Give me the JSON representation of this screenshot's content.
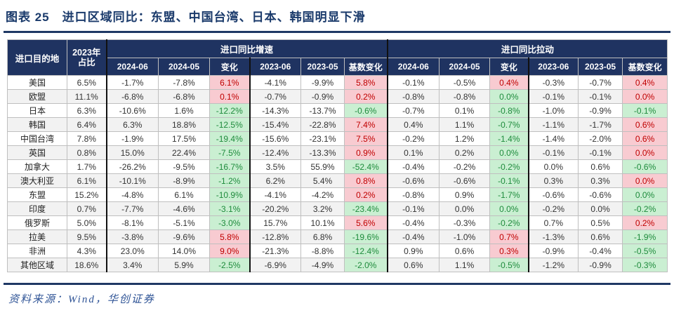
{
  "title": "图表 25　进口区域同比：东盟、中国台湾、日本、韩国明显下滑",
  "source": "资料来源：Wind，华创证券",
  "colors": {
    "title": "#1A3A6B",
    "header_bg": "#1F3361",
    "rule": "#1F3864",
    "row_alt_bg": "#F2F2F2",
    "pink_bg": "#F8CBD1",
    "pink_text": "#C00000",
    "green_bg": "#CAEFD2",
    "green_text": "#1E8B3C",
    "grid_border": "#BFBFBF",
    "thick_border": "#111111"
  },
  "chart_data": {
    "type": "table",
    "row_header": "进口目的地",
    "share_header_line1": "2023年",
    "share_header_line2": "占比",
    "groups": [
      "进口同比增速",
      "进口同比拉动"
    ],
    "sub_headers": [
      "2024-06",
      "2024-05",
      "变化",
      "2023-06",
      "2023-05",
      "基数变化"
    ],
    "rows": [
      {
        "name": "美国",
        "share": "6.5%",
        "cells": [
          "-1.7%",
          "-7.8%",
          "6.1%",
          "-4.1%",
          "-9.9%",
          "5.8%",
          "-0.1%",
          "-0.5%",
          "0.4%",
          "-0.3%",
          "-0.7%",
          "0.4%"
        ],
        "tones": [
          "p",
          "p",
          "p",
          "p"
        ]
      },
      {
        "name": "欧盟",
        "share": "11.1%",
        "cells": [
          "-6.8%",
          "-6.8%",
          "0.1%",
          "-0.7%",
          "-0.9%",
          "0.2%",
          "-0.8%",
          "-0.8%",
          "0.0%",
          "-0.1%",
          "-0.1%",
          "0.0%"
        ],
        "tones": [
          "p",
          "p",
          "g",
          "p"
        ]
      },
      {
        "name": "日本",
        "share": "6.3%",
        "cells": [
          "-10.6%",
          "1.6%",
          "-12.2%",
          "-14.3%",
          "-13.7%",
          "-0.6%",
          "-0.7%",
          "0.1%",
          "-0.8%",
          "-1.0%",
          "-0.9%",
          "-0.1%"
        ],
        "tones": [
          "g",
          "g",
          "g",
          "g"
        ]
      },
      {
        "name": "韩国",
        "share": "6.4%",
        "cells": [
          "6.3%",
          "18.8%",
          "-12.5%",
          "-15.4%",
          "-22.8%",
          "7.4%",
          "0.4%",
          "1.1%",
          "-0.7%",
          "-1.1%",
          "-1.7%",
          "0.6%"
        ],
        "tones": [
          "g",
          "p",
          "g",
          "p"
        ]
      },
      {
        "name": "中国台湾",
        "share": "7.8%",
        "cells": [
          "-1.9%",
          "17.5%",
          "-19.4%",
          "-15.6%",
          "-23.1%",
          "7.5%",
          "-0.2%",
          "1.2%",
          "-1.4%",
          "-1.4%",
          "-2.0%",
          "0.6%"
        ],
        "tones": [
          "g",
          "p",
          "g",
          "p"
        ]
      },
      {
        "name": "英国",
        "share": "0.8%",
        "cells": [
          "15.0%",
          "22.4%",
          "-7.5%",
          "-12.4%",
          "-13.3%",
          "0.9%",
          "0.1%",
          "0.2%",
          "0.0%",
          "-0.1%",
          "-0.1%",
          "0.0%"
        ],
        "tones": [
          "g",
          "p",
          "g",
          "p"
        ]
      },
      {
        "name": "加拿大",
        "share": "1.7%",
        "cells": [
          "-26.2%",
          "-9.5%",
          "-16.7%",
          "3.5%",
          "55.9%",
          "-52.4%",
          "-0.4%",
          "-0.2%",
          "-0.2%",
          "0.0%",
          "0.6%",
          "-0.6%"
        ],
        "tones": [
          "g",
          "g",
          "g",
          "g"
        ]
      },
      {
        "name": "澳大利亚",
        "share": "6.1%",
        "cells": [
          "-10.1%",
          "-8.9%",
          "-1.2%",
          "6.2%",
          "5.4%",
          "0.8%",
          "-0.6%",
          "-0.6%",
          "-0.1%",
          "0.3%",
          "0.3%",
          "0.0%"
        ],
        "tones": [
          "g",
          "p",
          "g",
          "p"
        ]
      },
      {
        "name": "东盟",
        "share": "15.2%",
        "cells": [
          "-4.8%",
          "6.1%",
          "-10.9%",
          "-4.1%",
          "-4.2%",
          "0.2%",
          "-0.8%",
          "0.9%",
          "-1.7%",
          "-0.6%",
          "-0.6%",
          "0.0%"
        ],
        "tones": [
          "g",
          "p",
          "g",
          "g"
        ]
      },
      {
        "name": "印度",
        "share": "0.7%",
        "cells": [
          "-7.7%",
          "-4.6%",
          "-3.1%",
          "-20.2%",
          "3.2%",
          "-23.4%",
          "-0.1%",
          "0.0%",
          "0.0%",
          "-0.2%",
          "0.0%",
          "-0.2%"
        ],
        "tones": [
          "g",
          "g",
          "g",
          "g"
        ]
      },
      {
        "name": "俄罗斯",
        "share": "5.0%",
        "cells": [
          "-8.1%",
          "-5.1%",
          "-3.0%",
          "15.7%",
          "10.1%",
          "5.6%",
          "-0.4%",
          "-0.3%",
          "-0.2%",
          "0.7%",
          "0.5%",
          "0.2%"
        ],
        "tones": [
          "g",
          "p",
          "g",
          "p"
        ]
      },
      {
        "name": "拉美",
        "share": "9.5%",
        "cells": [
          "-3.8%",
          "-9.6%",
          "5.8%",
          "-12.8%",
          "6.8%",
          "-19.6%",
          "-0.4%",
          "-1.0%",
          "0.7%",
          "-1.3%",
          "0.6%",
          "-1.9%"
        ],
        "tones": [
          "p",
          "g",
          "p",
          "g"
        ]
      },
      {
        "name": "非洲",
        "share": "4.3%",
        "cells": [
          "23.0%",
          "14.0%",
          "9.0%",
          "-21.3%",
          "-8.8%",
          "-12.4%",
          "0.9%",
          "0.6%",
          "0.3%",
          "-0.9%",
          "-0.4%",
          "-0.5%"
        ],
        "tones": [
          "p",
          "g",
          "p",
          "g"
        ]
      },
      {
        "name": "其他区域",
        "share": "18.6%",
        "cells": [
          "3.4%",
          "5.9%",
          "-2.5%",
          "-6.9%",
          "-4.9%",
          "-2.0%",
          "0.6%",
          "1.1%",
          "-0.5%",
          "-1.2%",
          "-0.9%",
          "-0.3%"
        ],
        "tones": [
          "g",
          "g",
          "g",
          "g"
        ]
      }
    ]
  }
}
